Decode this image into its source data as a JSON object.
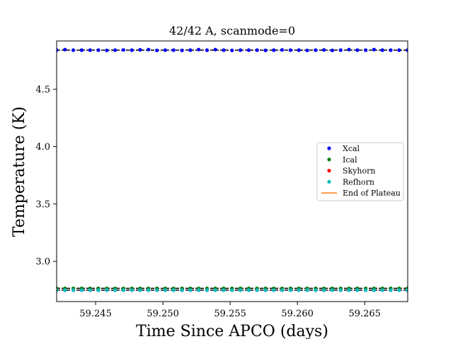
{
  "chart_data": {
    "type": "scatter",
    "title": "42/42 A, scanmode=0",
    "xlabel": "Time Since APCO (days)",
    "ylabel": "Temperature (K)",
    "xlim": [
      59.2421,
      59.2682
    ],
    "ylim": [
      2.65,
      4.92
    ],
    "xticks": [
      {
        "value": 59.245,
        "label": "59.245"
      },
      {
        "value": 59.25,
        "label": "59.250"
      },
      {
        "value": 59.255,
        "label": "59.255"
      },
      {
        "value": 59.26,
        "label": "59.260"
      },
      {
        "value": 59.265,
        "label": "59.265"
      }
    ],
    "yticks": [
      {
        "value": 3.0,
        "label": "3.0"
      },
      {
        "value": 3.5,
        "label": "3.5"
      },
      {
        "value": 4.0,
        "label": "4.0"
      },
      {
        "value": 4.5,
        "label": "4.5"
      }
    ],
    "x_start": 59.2421,
    "x_step": 0.000621,
    "series": [
      {
        "name": "Xcal",
        "color": "#0000ff",
        "values": [
          4.84,
          4.845,
          4.84,
          4.84,
          4.84,
          4.84,
          4.838,
          4.84,
          4.842,
          4.84,
          4.843,
          4.845,
          4.838,
          4.84,
          4.84,
          4.838,
          4.84,
          4.845,
          4.84,
          4.845,
          4.84,
          4.838,
          4.84,
          4.84,
          4.84,
          4.838,
          4.84,
          4.842,
          4.84,
          4.84,
          4.838,
          4.84,
          4.842,
          4.838,
          4.84,
          4.845,
          4.84,
          4.84,
          4.845,
          4.84,
          4.84,
          4.84,
          4.84
        ]
      },
      {
        "name": "Ical",
        "color": "#008000",
        "values": [
          2.765,
          2.765,
          2.765,
          2.765,
          2.765,
          2.765,
          2.765,
          2.765,
          2.765,
          2.765,
          2.765,
          2.765,
          2.765,
          2.765,
          2.765,
          2.765,
          2.765,
          2.765,
          2.765,
          2.765,
          2.765,
          2.765,
          2.765,
          2.765,
          2.765,
          2.765,
          2.765,
          2.765,
          2.765,
          2.765,
          2.765,
          2.765,
          2.765,
          2.765,
          2.765,
          2.765,
          2.765,
          2.765,
          2.765,
          2.765,
          2.765,
          2.765,
          2.765
        ]
      },
      {
        "name": "Skyhorn",
        "color": "#ff0000",
        "values": [
          2.75,
          2.75,
          2.75,
          2.75,
          2.75,
          2.75,
          2.75,
          2.75,
          2.75,
          2.75,
          2.75,
          2.75,
          2.75,
          2.75,
          2.75,
          2.75,
          2.75,
          2.75,
          2.75,
          2.75,
          2.75,
          2.75,
          2.75,
          2.75,
          2.75,
          2.75,
          2.75,
          2.75,
          2.75,
          2.75,
          2.75,
          2.75,
          2.75,
          2.75,
          2.75,
          2.75,
          2.75,
          2.75,
          2.75,
          2.75,
          2.75,
          2.75,
          2.75
        ]
      },
      {
        "name": "Refhorn",
        "color": "#00bfbf",
        "values": [
          2.75,
          2.75,
          2.75,
          2.75,
          2.75,
          2.75,
          2.75,
          2.75,
          2.75,
          2.75,
          2.75,
          2.75,
          2.75,
          2.75,
          2.75,
          2.75,
          2.75,
          2.75,
          2.75,
          2.75,
          2.75,
          2.75,
          2.75,
          2.75,
          2.75,
          2.75,
          2.75,
          2.75,
          2.75,
          2.75,
          2.75,
          2.75,
          2.75,
          2.75,
          2.75,
          2.75,
          2.75,
          2.75,
          2.75,
          2.75,
          2.75,
          2.75,
          2.75
        ]
      }
    ],
    "reference_lines": [
      {
        "y": 4.84,
        "color": "#000000"
      },
      {
        "y": 2.765,
        "color": "#000000"
      },
      {
        "y": 2.75,
        "color": "#000000"
      }
    ],
    "legend": {
      "placement": "center-right",
      "entries": [
        {
          "label": "Xcal",
          "color": "#0000ff",
          "kind": "marker"
        },
        {
          "label": "Ical",
          "color": "#008000",
          "kind": "marker"
        },
        {
          "label": "Skyhorn",
          "color": "#ff0000",
          "kind": "marker"
        },
        {
          "label": "Refhorn",
          "color": "#00bfbf",
          "kind": "marker"
        },
        {
          "label": "End of Plateau",
          "color": "#ff7f0e",
          "kind": "line"
        }
      ]
    },
    "grid": false
  }
}
